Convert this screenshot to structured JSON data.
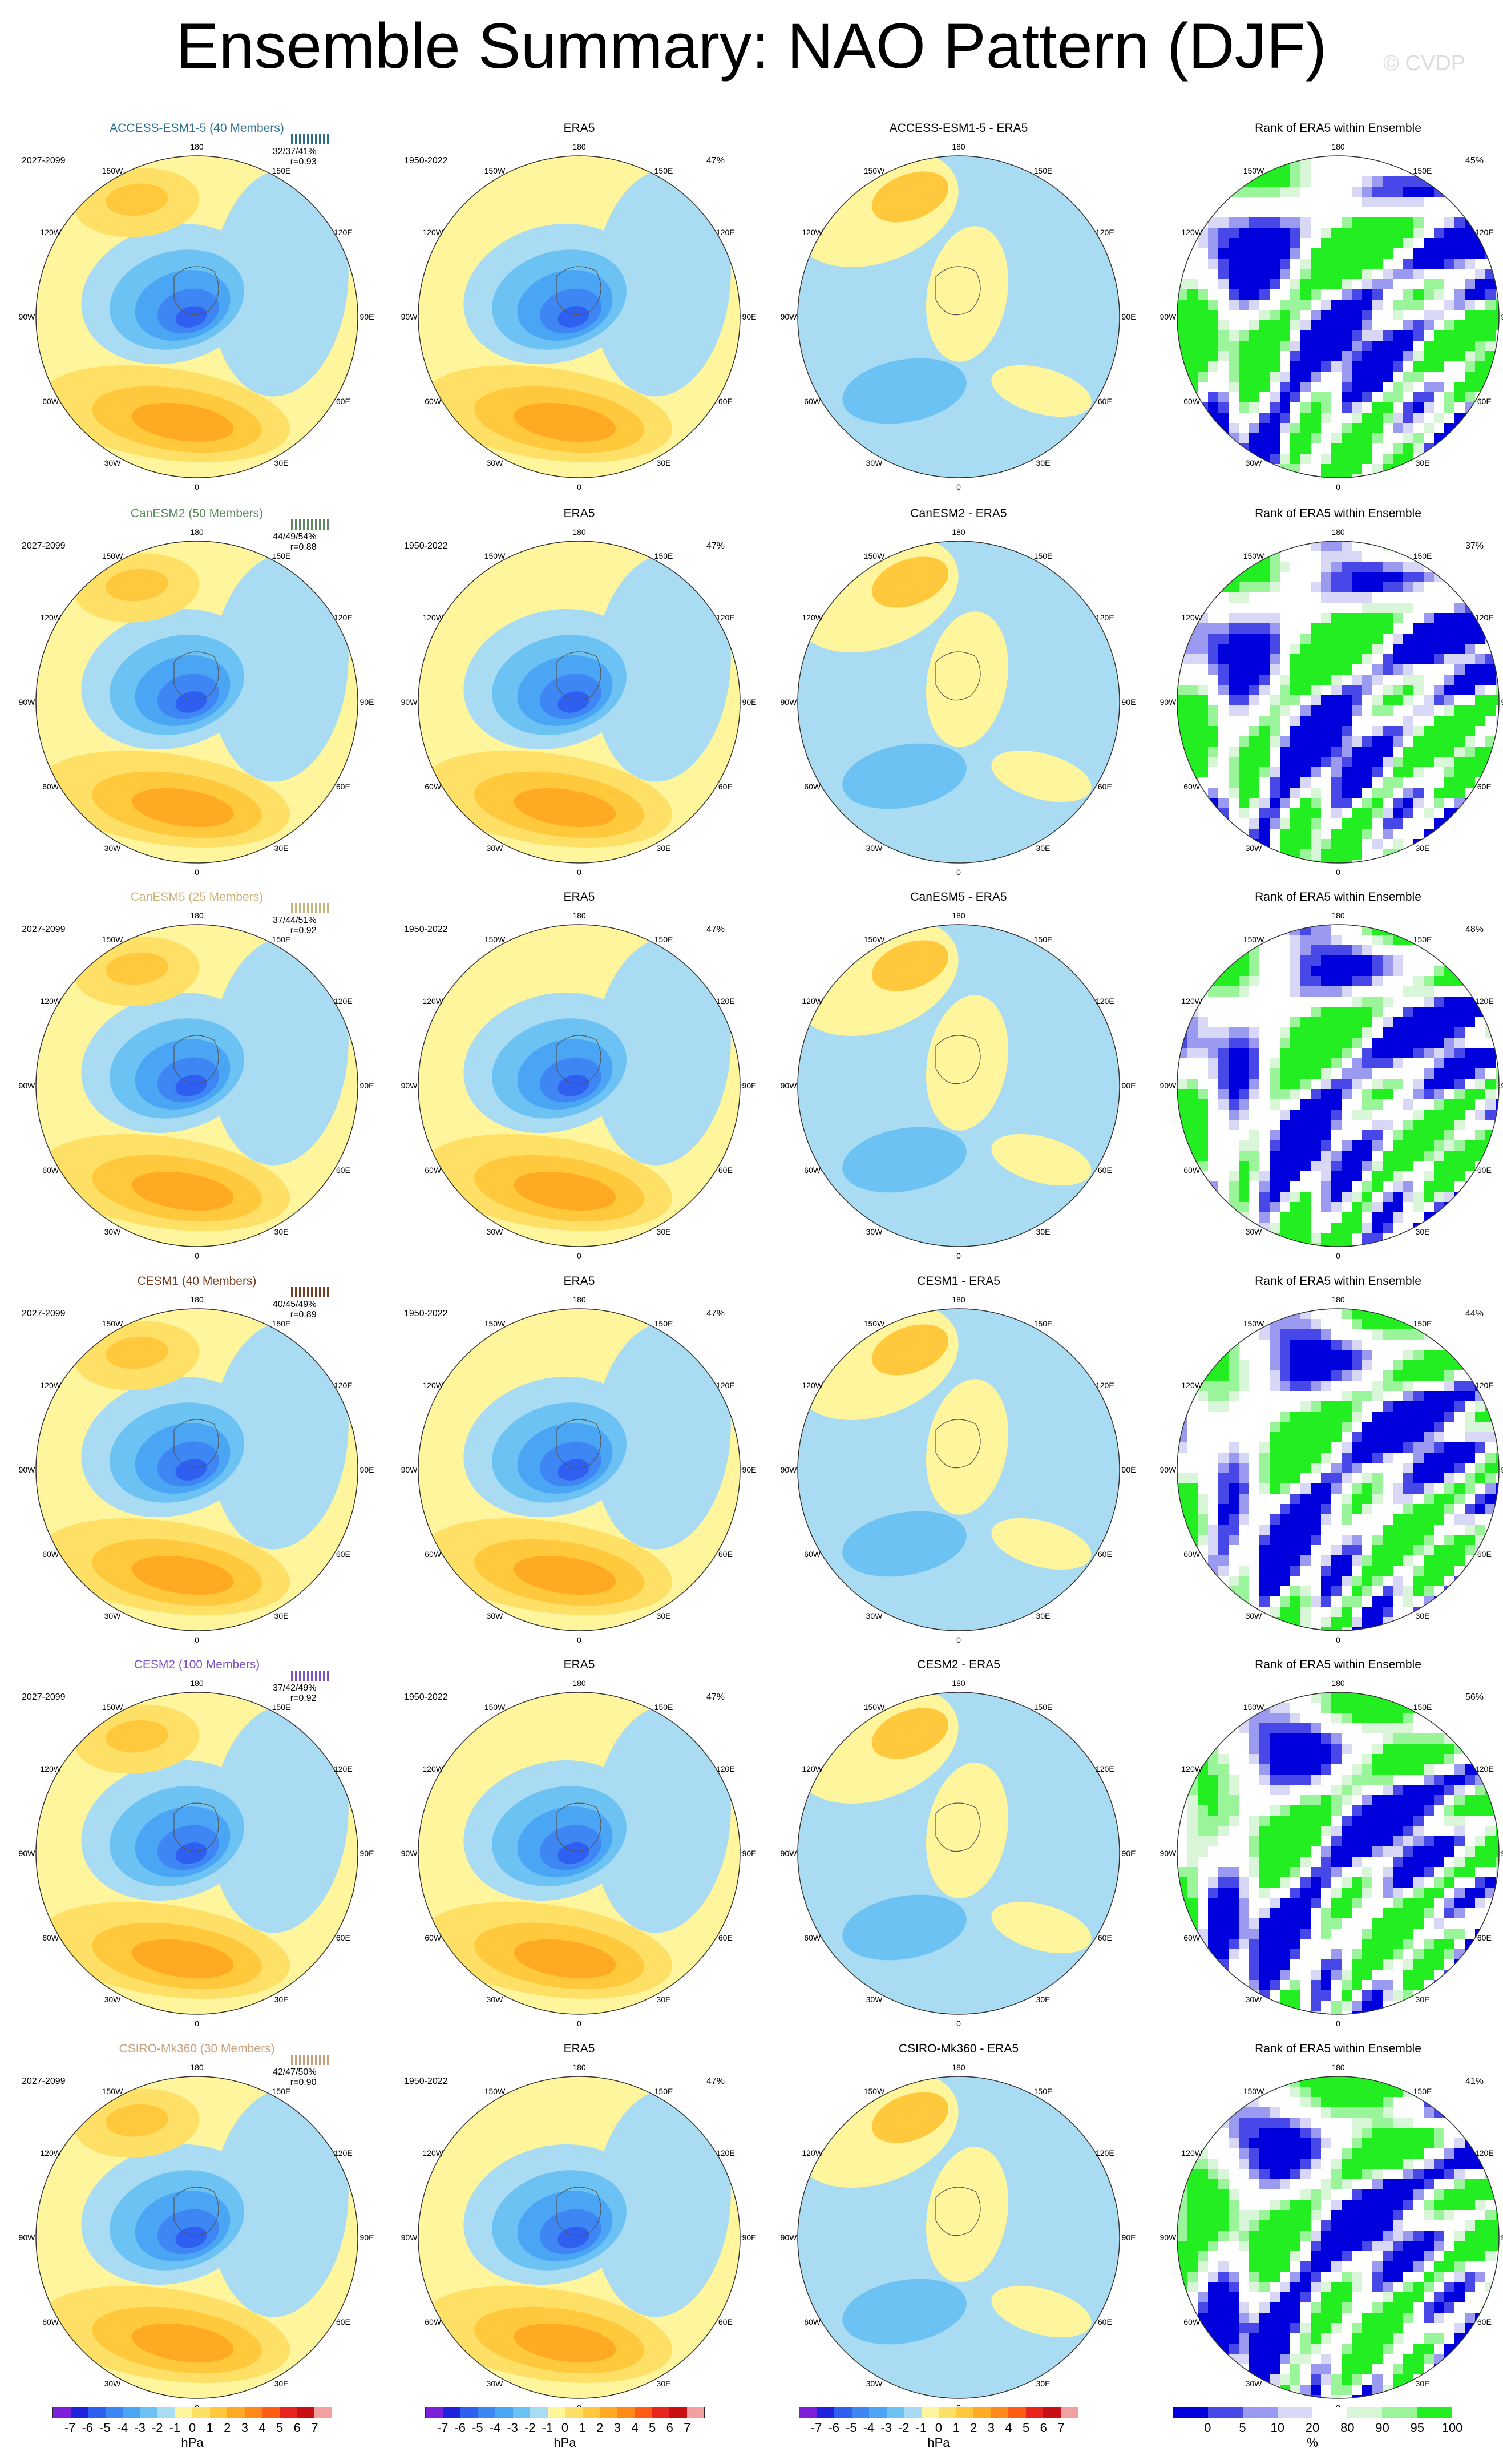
{
  "title": "Ensemble Summary: NAO Pattern (DJF)",
  "watermark": "© CVDP",
  "lon_labels": [
    "180",
    "150E",
    "120E",
    "90E",
    "60E",
    "30E",
    "0",
    "30W",
    "60W",
    "90W",
    "120W",
    "150W"
  ],
  "rows": [
    {
      "model": "ACCESS-ESM1-5 (40 Members)",
      "model_color": "#2a6f8f",
      "period": "2027-2099",
      "stats": "32/37/41%",
      "r": "r=0.93",
      "era_period": "1950-2022",
      "era_pct": "47%",
      "diff_title": "ACCESS-ESM1-5 - ERA5",
      "rank_pct": "45%"
    },
    {
      "model": "CanESM2 (50 Members)",
      "model_color": "#5f8a5f",
      "period": "2027-2099",
      "stats": "44/49/54%",
      "r": "r=0.88",
      "era_period": "1950-2022",
      "era_pct": "47%",
      "diff_title": "CanESM2 - ERA5",
      "rank_pct": "37%"
    },
    {
      "model": "CanESM5 (25 Members)",
      "model_color": "#c9b47a",
      "period": "2027-2099",
      "stats": "37/44/51%",
      "r": "r=0.92",
      "era_period": "1950-2022",
      "era_pct": "47%",
      "diff_title": "CanESM5 - ERA5",
      "rank_pct": "48%"
    },
    {
      "model": "CESM1 (40 Members)",
      "model_color": "#7a3b1e",
      "period": "2027-2099",
      "stats": "40/45/49%",
      "r": "r=0.89",
      "era_period": "1950-2022",
      "era_pct": "47%",
      "diff_title": "CESM1 - ERA5",
      "rank_pct": "44%"
    },
    {
      "model": "CESM2 (100 Members)",
      "model_color": "#7b52c8",
      "period": "2027-2099",
      "stats": "37/42/49%",
      "r": "r=0.92",
      "era_period": "1950-2022",
      "era_pct": "47%",
      "diff_title": "CESM2 - ERA5",
      "rank_pct": "56%"
    },
    {
      "model": "CSIRO-Mk360 (30 Members)",
      "model_color": "#c9a07a",
      "period": "2027-2099",
      "stats": "42/47/50%",
      "r": "r=0.90",
      "era_period": "1950-2022",
      "era_pct": "47%",
      "diff_title": "CSIRO-Mk360 - ERA5",
      "rank_pct": "41%"
    }
  ],
  "era_title": "ERA5",
  "rank_title": "Rank of ERA5 within Ensemble",
  "colorbar_hpa": {
    "labels": [
      "-7",
      "-6",
      "-5",
      "-4",
      "-3",
      "-2",
      "-1",
      "0",
      "1",
      "2",
      "3",
      "4",
      "5",
      "6",
      "7"
    ],
    "unit": "hPa",
    "colors": [
      "#7d1fd9",
      "#2121e0",
      "#2f5ff0",
      "#3d86f3",
      "#4aa6f5",
      "#6cc3f3",
      "#a9dcf3",
      "#fff59d",
      "#ffe066",
      "#ffc83d",
      "#ffaa22",
      "#ff8a1a",
      "#ff5c14",
      "#e8241c",
      "#c80f14",
      "#f2a0a0"
    ]
  },
  "colorbar_pct": {
    "labels": [
      "0",
      "5",
      "10",
      "20",
      "80",
      "90",
      "95",
      "100"
    ],
    "unit": "%",
    "colors": [
      "#0000dd",
      "#4848e8",
      "#9a9af0",
      "#d8d8f6",
      "#ffffff",
      "#d9f6d9",
      "#9af59a",
      "#22ee22"
    ]
  }
}
